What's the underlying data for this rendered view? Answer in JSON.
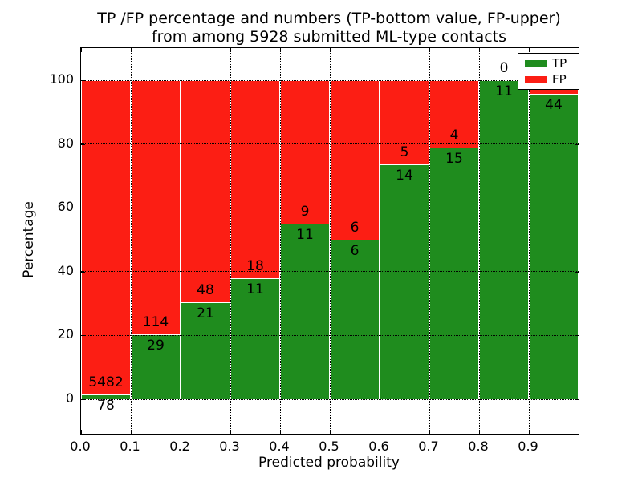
{
  "title": {
    "line1": "TP /FP percentage and numbers (TP-bottom value, FP-upper)",
    "line2": "from among 5928 submitted ML-type contacts"
  },
  "axes": {
    "xlabel": "Predicted probability",
    "ylabel": "Percentage",
    "x_tick_labels": [
      "0.0",
      "0.1",
      "0.2",
      "0.3",
      "0.4",
      "0.5",
      "0.6",
      "0.7",
      "0.8",
      "0.9"
    ],
    "y_tick_labels": [
      "0",
      "20",
      "40",
      "60",
      "80",
      "100"
    ]
  },
  "legend": {
    "items": [
      {
        "label": "TP",
        "color": "#1f8c1e"
      },
      {
        "label": "FP",
        "color": "#fc1e14"
      }
    ]
  },
  "colors": {
    "tp": "#1f8c1e",
    "fp": "#fc1e14",
    "bar_edge": "#ffffff",
    "grid": "#000000",
    "background": "#ffffff"
  },
  "chart_data": {
    "type": "bar",
    "stacked": true,
    "normalized": "percent_within_bin",
    "title": "TP /FP percentage and numbers (TP-bottom value, FP-upper) from among 5928 submitted ML-type contacts",
    "xlabel": "Predicted probability",
    "ylabel": "Percentage",
    "xlim": [
      0.0,
      1.0
    ],
    "ylim": [
      -11,
      110
    ],
    "y_ticks": [
      0,
      20,
      40,
      60,
      80,
      100
    ],
    "x_ticks": [
      0.0,
      0.1,
      0.2,
      0.3,
      0.4,
      0.5,
      0.6,
      0.7,
      0.8,
      0.9
    ],
    "grid": true,
    "legend_position": "upper right",
    "total_submitted": 5928,
    "bin_width": 0.1,
    "categories": [
      "0.0-0.1",
      "0.1-0.2",
      "0.2-0.3",
      "0.3-0.4",
      "0.4-0.5",
      "0.5-0.6",
      "0.6-0.7",
      "0.7-0.8",
      "0.8-0.9",
      "0.9-1.0"
    ],
    "series": [
      {
        "name": "TP",
        "color": "#1f8c1e",
        "values": [
          78,
          29,
          21,
          11,
          11,
          6,
          14,
          15,
          11,
          44
        ]
      },
      {
        "name": "FP",
        "color": "#fc1e14",
        "values": [
          5482,
          114,
          48,
          18,
          9,
          6,
          5,
          4,
          0,
          2
        ]
      }
    ],
    "notes": "Counts annotated on chart: TP below the green segment top, FP above it. The FP label of the 0.9-1.0 bin is occluded by the legend box; its value is inferred from the 5928 total."
  }
}
